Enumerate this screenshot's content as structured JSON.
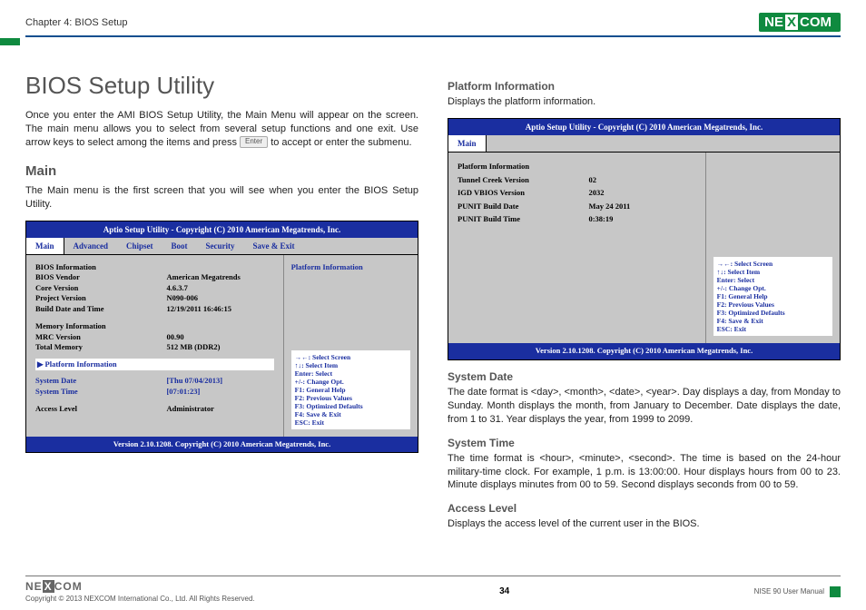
{
  "header": {
    "chapter": "Chapter 4: BIOS Setup",
    "logo": "NEXCOM"
  },
  "left": {
    "title": "BIOS Setup Utility",
    "intro1": "Once you enter the AMI BIOS Setup Utility, the Main Menu will appear on the screen. The main menu allows you to select from several setup functions and one exit. Use arrow keys to select among the items and press ",
    "intro2": " to accept or enter the submenu.",
    "enterLabel": "Enter",
    "mainHeading": "Main",
    "mainText": "The Main menu is the first screen that you will see when you enter the BIOS Setup Utility."
  },
  "bios1": {
    "title": "Aptio Setup Utility - Copyright (C) 2010 American Megatrends, Inc.",
    "tabs": [
      "Main",
      "Advanced",
      "Chipset",
      "Boot",
      "Security",
      "Save & Exit"
    ],
    "rows": [
      {
        "k": "BIOS Information",
        "v": ""
      },
      {
        "k": "BIOS Vendor",
        "v": "American Megatrends"
      },
      {
        "k": "Core Version",
        "v": "4.6.3.7"
      },
      {
        "k": "Project Version",
        "v": "N090-006"
      },
      {
        "k": "Build Date and Time",
        "v": "12/19/2011 16:46:15"
      }
    ],
    "rows2": [
      {
        "k": "Memory Information",
        "v": ""
      },
      {
        "k": "MRC Version",
        "v": "00.90"
      },
      {
        "k": "Total Memory",
        "v": "  512 MB (DDR2)"
      }
    ],
    "platform": "Platform Information",
    "rows3": [
      {
        "k": "System Date",
        "v": "[Thu 07/04/2013]",
        "blue": true
      },
      {
        "k": "System Time",
        "v": "[07:01:23]",
        "blue": true
      }
    ],
    "accessRow": {
      "k": "Access Level",
      "v": "Administrator"
    },
    "rightTop": "Platform Information",
    "help": [
      "→←: Select Screen",
      "↑↓: Select Item",
      "Enter: Select",
      "+/-: Change Opt.",
      "F1: General Help",
      "F2: Previous Values",
      "F3: Optimized Defaults",
      "F4: Save & Exit",
      "ESC: Exit"
    ],
    "footer": "Version 2.10.1208. Copyright (C) 2010 American Megatrends, Inc."
  },
  "right": {
    "h1": "Platform Information",
    "p1": "Displays the platform information."
  },
  "bios2": {
    "title": "Aptio Setup Utility - Copyright (C) 2010 American Megatrends, Inc.",
    "tab": "Main",
    "rows": [
      {
        "k": "Platform Information",
        "v": ""
      },
      {
        "k": "Tunnel Creek Version",
        "v": "02"
      },
      {
        "k": "IGD VBIOS Version",
        "v": "2032"
      },
      {
        "k": "PUNIT Build Date",
        "v": "May 24 2011"
      },
      {
        "k": "PUNIT Build Time",
        "v": "0:38:19"
      }
    ],
    "help": [
      "→←: Select Screen",
      "↑↓: Select Item",
      "Enter: Select",
      "+/-: Change Opt.",
      "F1: General Help",
      "F2: Previous Values",
      "F3: Optimized Defaults",
      "F4: Save & Exit",
      "ESC: Exit"
    ],
    "footer": "Version 2.10.1208. Copyright (C) 2010 American Megatrends, Inc."
  },
  "sections": [
    {
      "h": "System Date",
      "p": "The date format is <day>, <month>, <date>, <year>. Day displays a day, from Monday to Sunday. Month displays the month, from January to December. Date displays the date, from 1 to 31. Year displays the year, from 1999 to 2099."
    },
    {
      "h": "System Time",
      "p": "The time format is <hour>, <minute>, <second>. The time is based on the 24-hour military-time clock. For example, 1 p.m. is 13:00:00. Hour displays hours from 00 to 23. Minute displays minutes from 00 to 59. Second displays seconds from 00 to 59."
    },
    {
      "h": "Access Level",
      "p": "Displays the access level of the current user in the BIOS."
    }
  ],
  "footer": {
    "copyright": "Copyright © 2013 NEXCOM International Co., Ltd. All Rights Reserved.",
    "page": "34",
    "manual": "NISE 90 User Manual"
  }
}
